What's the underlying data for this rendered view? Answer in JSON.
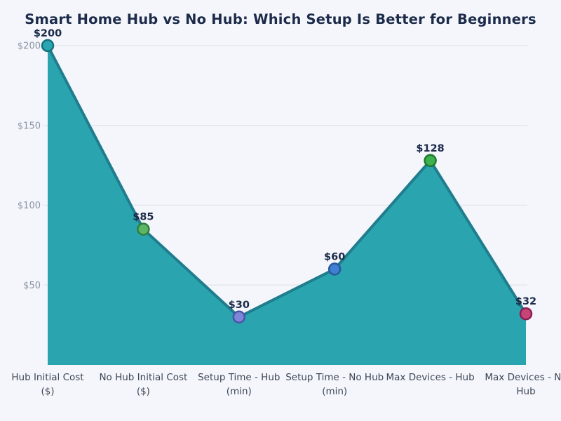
{
  "chart_data": {
    "type": "area",
    "title": "Smart Home Hub vs No Hub: Which Setup Is Better for Beginners",
    "categories": [
      "Hub Initial Cost ($)",
      "No Hub Initial Cost ($)",
      "Setup Time - Hub (min)",
      "Setup Time - No Hub (min)",
      "Max Devices - Hub",
      "Max Devices - No Hub"
    ],
    "category_lines": [
      [
        "Hub Initial Cost",
        "($)"
      ],
      [
        "No Hub Initial Cost",
        "($)"
      ],
      [
        "Setup Time - Hub",
        "(min)"
      ],
      [
        "Setup Time - No Hub",
        "(min)"
      ],
      [
        "Max Devices - Hub"
      ],
      [
        "Max Devices - No",
        "Hub"
      ]
    ],
    "values": [
      200,
      85,
      30,
      60,
      128,
      32
    ],
    "point_labels": [
      "$200",
      "$85",
      "$30",
      "$60",
      "$128",
      "$32"
    ],
    "y_ticks": [
      {
        "value": 50,
        "label": "$50"
      },
      {
        "value": 100,
        "label": "$100"
      },
      {
        "value": 150,
        "label": "$150"
      },
      {
        "value": 200,
        "label": "$200"
      }
    ],
    "ylim": [
      0,
      200
    ],
    "grid": true,
    "legend": "none",
    "colors": {
      "background": "#f4f6fb",
      "area_fill": "#2aa5b0",
      "line": "#1f7d8d",
      "gridline": "#e3e7ed",
      "tick_text": "#8b94a3",
      "axis_text": "#3d4757",
      "label_text": "#1c2b4a",
      "title_text": "#1c2b4a",
      "marker_fills": [
        "#2aa6b1",
        "#5db566",
        "#7e86d9",
        "#3f80d3",
        "#3eb04d",
        "#c74479"
      ],
      "marker_strokes": [
        "#15707f",
        "#2f7f3a",
        "#4b53a5",
        "#29589c",
        "#1f7a2f",
        "#8c1f52"
      ]
    }
  }
}
